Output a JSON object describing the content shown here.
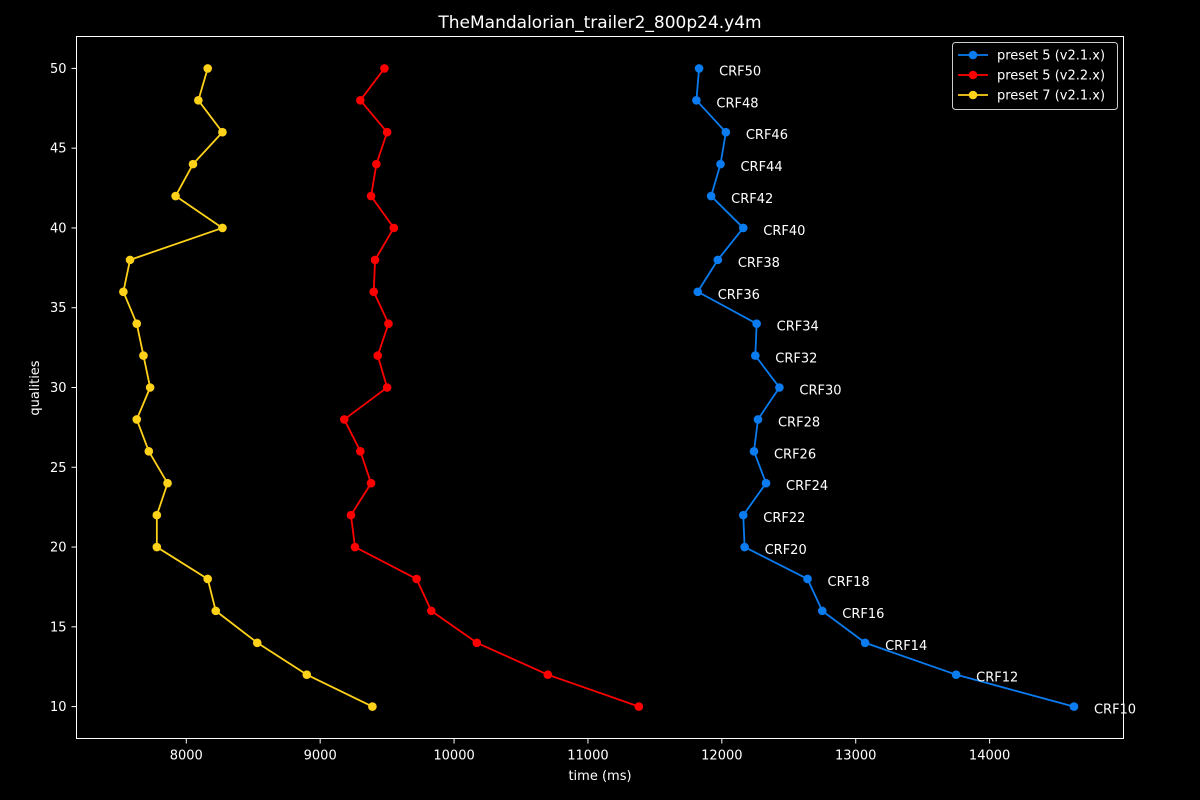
{
  "chart_data": {
    "type": "line",
    "title": "TheMandalorian_trailer2_800p24.y4m",
    "xlabel": "time (ms)",
    "ylabel": "qualities",
    "xlim": [
      7180,
      15000
    ],
    "ylim": [
      8,
      52
    ],
    "xticks": [
      8000,
      9000,
      10000,
      11000,
      12000,
      13000,
      14000
    ],
    "yticks": [
      10,
      15,
      20,
      25,
      30,
      35,
      40,
      45,
      50
    ],
    "grid": false,
    "legend_position": "top-right",
    "y": [
      50,
      48,
      46,
      44,
      42,
      40,
      38,
      36,
      34,
      32,
      30,
      28,
      26,
      24,
      22,
      20,
      18,
      16,
      14,
      12,
      10
    ],
    "point_labels": [
      "CRF50",
      "CRF48",
      "CRF46",
      "CRF44",
      "CRF42",
      "CRF40",
      "CRF38",
      "CRF36",
      "CRF34",
      "CRF32",
      "CRF30",
      "CRF28",
      "CRF26",
      "CRF24",
      "CRF22",
      "CRF20",
      "CRF18",
      "CRF16",
      "CRF14",
      "CRF12",
      "CRF10"
    ],
    "labeled_series": 0,
    "series": [
      {
        "name": "preset 5 (v2.1.x)",
        "color": "#0a7cf0",
        "x": [
          11830,
          11810,
          12030,
          11990,
          11920,
          12160,
          11970,
          11820,
          12260,
          12250,
          12430,
          12270,
          12240,
          12330,
          12160,
          12170,
          12640,
          12750,
          13070,
          13750,
          14630
        ]
      },
      {
        "name": "preset 5 (v2.2.x)",
        "color": "#ff0000",
        "x": [
          9480,
          9300,
          9500,
          9420,
          9380,
          9550,
          9410,
          9400,
          9510,
          9430,
          9500,
          9180,
          9300,
          9380,
          9230,
          9260,
          9720,
          9830,
          10170,
          10700,
          11380
        ]
      },
      {
        "name": "preset 7 (v2.1.x)",
        "color": "#ffd21a",
        "x": [
          8160,
          8090,
          8270,
          8050,
          7920,
          8270,
          7580,
          7530,
          7630,
          7680,
          7730,
          7630,
          7720,
          7860,
          7780,
          7780,
          8160,
          8220,
          8530,
          8900,
          9390
        ]
      }
    ]
  }
}
